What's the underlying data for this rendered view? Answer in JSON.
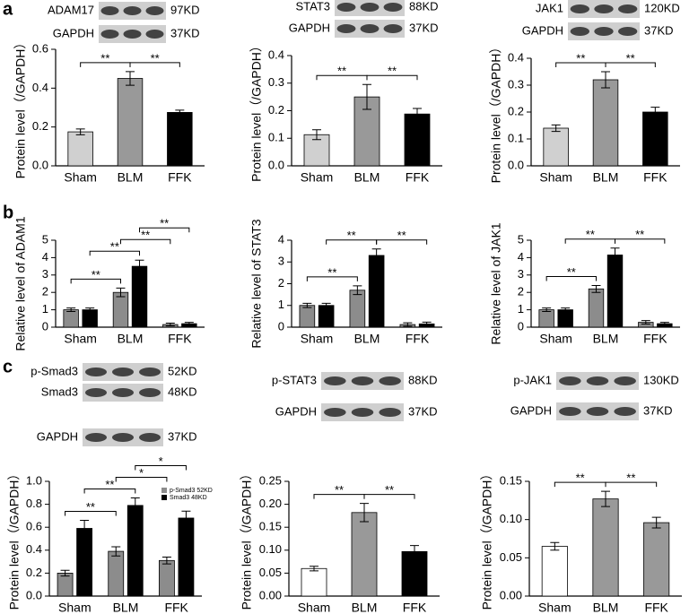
{
  "panel_labels": [
    "a",
    "b",
    "c"
  ],
  "chart_data": [
    {
      "type": "bar",
      "ylabel": "Protein level（/GAPDH）",
      "categories": [
        "Sham",
        "BLM",
        "FFK"
      ],
      "values": [
        0.175,
        0.45,
        0.275
      ],
      "errors": [
        0.015,
        0.035,
        0.012
      ],
      "colors": [
        "#d0d0d0",
        "#999999",
        "#000000"
      ],
      "ylim": [
        0,
        0.6
      ],
      "yticks": [
        {
          "value": 0,
          "label": "0.0"
        },
        0.2,
        0.4,
        0.6
      ],
      "blots": [
        {
          "label": "ADAM17",
          "size": "97KD"
        },
        {
          "label": "GAPDH",
          "size": "37KD"
        }
      ],
      "annotations": [
        {
          "text": "**",
          "between": [
            [
              0,
              0
            ],
            [
              1,
              0
            ]
          ]
        },
        {
          "text": "**",
          "between": [
            [
              1,
              0
            ],
            [
              2,
              0
            ]
          ]
        }
      ]
    },
    {
      "type": "bar",
      "ylabel": "Protein level（/GAPDH）",
      "categories": [
        "Sham",
        "BLM",
        "FFK"
      ],
      "values": [
        0.113,
        0.25,
        0.188
      ],
      "errors": [
        0.018,
        0.045,
        0.02
      ],
      "colors": [
        "#d0d0d0",
        "#999999",
        "#000000"
      ],
      "ylim": [
        0,
        0.4
      ],
      "yticks": [
        {
          "value": 0,
          "label": "0.0"
        },
        0.1,
        0.2,
        0.3,
        0.4
      ],
      "blots": [
        {
          "label": "STAT3",
          "size": "88KD"
        },
        {
          "label": "GAPDH",
          "size": "37KD"
        }
      ],
      "annotations": [
        {
          "text": "**",
          "between": [
            [
              0,
              0
            ],
            [
              1,
              0
            ]
          ]
        },
        {
          "text": "**",
          "between": [
            [
              1,
              0
            ],
            [
              2,
              0
            ]
          ]
        }
      ]
    },
    {
      "type": "bar",
      "ylabel": "Protein level（/GAPDH）",
      "categories": [
        "Sham",
        "BLM",
        "FFK"
      ],
      "values": [
        0.14,
        0.32,
        0.2
      ],
      "errors": [
        0.012,
        0.03,
        0.018
      ],
      "colors": [
        "#d0d0d0",
        "#999999",
        "#000000"
      ],
      "ylim": [
        0,
        0.4
      ],
      "yticks": [
        {
          "value": 0,
          "label": "0.0"
        },
        0.1,
        0.2,
        0.3,
        0.4
      ],
      "blots": [
        {
          "label": "JAK1",
          "size": "120KD"
        },
        {
          "label": "GAPDH",
          "size": "37KD"
        }
      ],
      "annotations": [
        {
          "text": "**",
          "between": [
            [
              0,
              0
            ],
            [
              1,
              0
            ]
          ]
        },
        {
          "text": "**",
          "between": [
            [
              1,
              0
            ],
            [
              2,
              0
            ]
          ]
        }
      ]
    },
    {
      "type": "bar",
      "ylabel": "Relative level of ADAM1",
      "categories": [
        "Sham",
        "BLM",
        "FFK"
      ],
      "series": [
        {
          "color": "#8c8c8c",
          "values": [
            1.0,
            2.0,
            0.15
          ],
          "errors": [
            0.1,
            0.25,
            0.08
          ]
        },
        {
          "color": "#000000",
          "values": [
            1.0,
            3.5,
            0.2
          ],
          "errors": [
            0.1,
            0.35,
            0.08
          ]
        }
      ],
      "ylim": [
        0,
        5
      ],
      "yticks": [
        0,
        1,
        2,
        3,
        4,
        5
      ],
      "annotations": [
        {
          "text": "**",
          "between": [
            [
              0,
              0
            ],
            [
              1,
              0
            ]
          ]
        },
        {
          "text": "**",
          "between": [
            [
              0,
              1
            ],
            [
              1,
              1
            ]
          ]
        },
        {
          "text": "**",
          "between": [
            [
              1,
              0
            ],
            [
              2,
              0
            ]
          ]
        },
        {
          "text": "**",
          "between": [
            [
              1,
              1
            ],
            [
              2,
              1
            ]
          ]
        }
      ]
    },
    {
      "type": "bar",
      "ylabel": "Relative level of STAT3",
      "categories": [
        "Sham",
        "BLM",
        "FFK"
      ],
      "series": [
        {
          "color": "#8c8c8c",
          "values": [
            1.0,
            1.7,
            0.12
          ],
          "errors": [
            0.1,
            0.2,
            0.08
          ]
        },
        {
          "color": "#000000",
          "values": [
            1.0,
            3.3,
            0.15
          ],
          "errors": [
            0.1,
            0.3,
            0.08
          ]
        }
      ],
      "ylim": [
        0,
        4
      ],
      "yticks": [
        0,
        1,
        2,
        3,
        4
      ],
      "annotations": [
        {
          "text": "**",
          "between": [
            [
              0,
              0
            ],
            [
              1,
              0
            ]
          ]
        },
        {
          "text": "**",
          "between": [
            [
              0,
              1
            ],
            [
              1,
              1
            ]
          ]
        },
        {
          "text": "**",
          "between": [
            [
              1,
              1
            ],
            [
              2,
              1
            ]
          ]
        }
      ]
    },
    {
      "type": "bar",
      "ylabel": "Relative level of JAK1",
      "categories": [
        "Sham",
        "BLM",
        "FFK"
      ],
      "series": [
        {
          "color": "#8c8c8c",
          "values": [
            1.0,
            2.2,
            0.28
          ],
          "errors": [
            0.1,
            0.2,
            0.1
          ]
        },
        {
          "color": "#000000",
          "values": [
            1.0,
            4.15,
            0.2
          ],
          "errors": [
            0.1,
            0.4,
            0.08
          ]
        }
      ],
      "ylim": [
        0,
        5
      ],
      "yticks": [
        0,
        1,
        2,
        3,
        4,
        5
      ],
      "annotations": [
        {
          "text": "**",
          "between": [
            [
              0,
              0
            ],
            [
              1,
              0
            ]
          ]
        },
        {
          "text": "**",
          "between": [
            [
              0,
              1
            ],
            [
              1,
              1
            ]
          ]
        },
        {
          "text": "**",
          "between": [
            [
              1,
              1
            ],
            [
              2,
              1
            ]
          ]
        }
      ]
    },
    {
      "type": "bar",
      "ylabel": "Protein level（/GAPDH）",
      "categories": [
        "Sham",
        "BLM",
        "FFK"
      ],
      "series": [
        {
          "name": "p-Smad3 52KD",
          "color": "#8c8c8c",
          "values": [
            0.2,
            0.39,
            0.31
          ],
          "errors": [
            0.025,
            0.04,
            0.03
          ]
        },
        {
          "name": "Smad3 48KD",
          "color": "#000000",
          "values": [
            0.59,
            0.79,
            0.68
          ],
          "errors": [
            0.07,
            0.065,
            0.06
          ]
        }
      ],
      "ylim": [
        0,
        1.0
      ],
      "yticks": [
        {
          "value": 0,
          "label": "0.0"
        },
        0.2,
        0.4,
        0.6,
        0.8,
        {
          "value": 1.0,
          "label": "1.0"
        }
      ],
      "blots": [
        {
          "label": "p-Smad3",
          "size": "52KD"
        },
        {
          "label": "Smad3",
          "size": "48KD"
        },
        {
          "label": "GAPDH",
          "size": "37KD"
        }
      ],
      "annotations": [
        {
          "text": "**",
          "between": [
            [
              0,
              0
            ],
            [
              1,
              0
            ]
          ]
        },
        {
          "text": "**",
          "between": [
            [
              0,
              1
            ],
            [
              1,
              1
            ]
          ]
        },
        {
          "text": "*",
          "between": [
            [
              1,
              0
            ],
            [
              2,
              0
            ]
          ]
        },
        {
          "text": "*",
          "between": [
            [
              1,
              1
            ],
            [
              2,
              1
            ]
          ]
        }
      ]
    },
    {
      "type": "bar",
      "ylabel": "Protein level（/GAPDH）",
      "categories": [
        "Sham",
        "BLM",
        "FFK"
      ],
      "values": [
        0.06,
        0.182,
        0.097
      ],
      "errors": [
        0.005,
        0.02,
        0.013
      ],
      "colors": [
        "#ffffff",
        "#999999",
        "#000000"
      ],
      "ylim": [
        0,
        0.25
      ],
      "yticks": [
        {
          "value": 0,
          "label": "0.00"
        },
        0.05,
        {
          "value": 0.1,
          "label": "0.10"
        },
        0.15,
        {
          "value": 0.2,
          "label": "0.20"
        },
        0.25
      ],
      "blots": [
        {
          "label": "p-STAT3",
          "size": "88KD"
        },
        {
          "label": "GAPDH",
          "size": "37KD"
        }
      ],
      "annotations": [
        {
          "text": "**",
          "between": [
            [
              0,
              0
            ],
            [
              1,
              0
            ]
          ]
        },
        {
          "text": "**",
          "between": [
            [
              1,
              0
            ],
            [
              2,
              0
            ]
          ]
        }
      ]
    },
    {
      "type": "bar",
      "ylabel": "Protein level（/GAPDH）",
      "categories": [
        "Sham",
        "BLM",
        "FFK"
      ],
      "values": [
        0.065,
        0.127,
        0.096
      ],
      "errors": [
        0.005,
        0.01,
        0.007
      ],
      "colors": [
        "#ffffff",
        "#999999",
        "#999999"
      ],
      "ylim": [
        0,
        0.15
      ],
      "yticks": [
        {
          "value": 0,
          "label": "0.00"
        },
        0.05,
        {
          "value": 0.1,
          "label": "0.10"
        },
        0.15
      ],
      "blots": [
        {
          "label": "p-JAK1",
          "size": "130KD"
        },
        {
          "label": "GAPDH",
          "size": "37KD"
        }
      ],
      "annotations": [
        {
          "text": "**",
          "between": [
            [
              0,
              0
            ],
            [
              1,
              0
            ]
          ]
        },
        {
          "text": "**",
          "between": [
            [
              1,
              0
            ],
            [
              2,
              0
            ]
          ]
        }
      ]
    }
  ]
}
